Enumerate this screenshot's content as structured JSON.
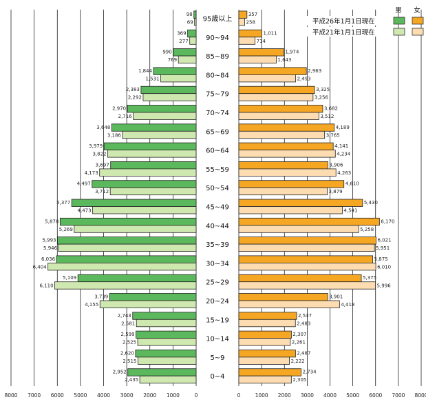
{
  "chart_data": {
    "type": "bar",
    "orientation": "horizontal-pyramid",
    "categories": [
      "95歳以上",
      "90~94",
      "85~89",
      "80~84",
      "75~79",
      "70~74",
      "65~69",
      "60~64",
      "55~59",
      "50~54",
      "45~49",
      "40~44",
      "35~39",
      "30~34",
      "25~29",
      "20~24",
      "15~19",
      "10~14",
      "5~9",
      "0~4"
    ],
    "series": [
      {
        "name": "平成26年1月1日現在",
        "side": "男",
        "color": "#5cb85c",
        "values": [
          98,
          369,
          990,
          1844,
          2383,
          2970,
          3648,
          3979,
          3697,
          4497,
          5377,
          5878,
          5993,
          6036,
          5109,
          3739,
          2743,
          2599,
          2620,
          2952
        ]
      },
      {
        "name": "平成21年1月1日現在",
        "side": "男",
        "color": "#cfe8b0",
        "values": [
          69,
          277,
          769,
          1531,
          2292,
          2716,
          3186,
          3822,
          4173,
          3712,
          4473,
          5269,
          5946,
          6404,
          6110,
          4155,
          2581,
          2525,
          2515,
          2435
        ]
      },
      {
        "name": "平成26年1月1日現在",
        "side": "女",
        "color": "#f5a623",
        "values": [
          357,
          1011,
          1974,
          2963,
          3325,
          3682,
          4189,
          4141,
          3906,
          4610,
          5430,
          6170,
          6021,
          5875,
          5375,
          3901,
          2537,
          2307,
          2487,
          2734
        ]
      },
      {
        "name": "平成21年1月1日現在",
        "side": "女",
        "color": "#fcdcb0",
        "values": [
          258,
          714,
          1643,
          2493,
          3256,
          3512,
          3765,
          4234,
          4263,
          3879,
          4541,
          5258,
          5951,
          6010,
          5996,
          4418,
          2483,
          2261,
          2222,
          2305
        ]
      }
    ],
    "left_ticks": [
      "8000",
      "7000",
      "6000",
      "5000",
      "4000",
      "3000",
      "2000",
      "1000",
      "0"
    ],
    "right_ticks": [
      "0",
      "1000",
      "2000",
      "3000",
      "4000",
      "5000",
      "6000",
      "7000",
      "8000"
    ],
    "xlim": [
      0,
      8000
    ],
    "legend": {
      "placement": "top-right",
      "male_header": "男",
      "female_header": "女",
      "entries": [
        "平成26年1月1日現在",
        "平成21年1月1日現在"
      ]
    },
    "grid": "vertical"
  }
}
